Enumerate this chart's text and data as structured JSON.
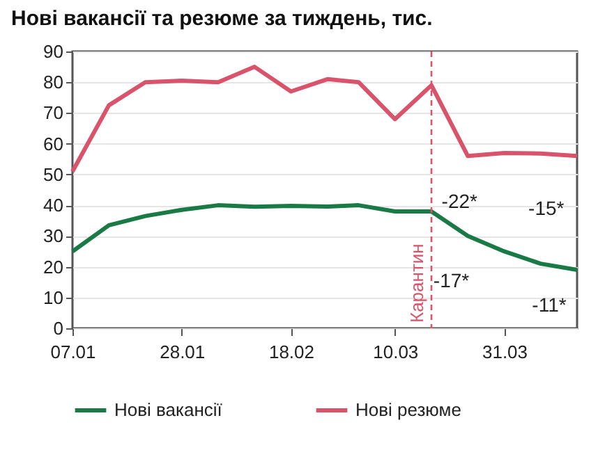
{
  "chart_data": {
    "type": "line",
    "title": "Нові вакансії та резюме за тиждень, тис.",
    "x": [
      "--01-07",
      "--01-14",
      "--01-21",
      "--01-28",
      "--02-04",
      "--02-11",
      "--02-18",
      "--02-25",
      "--03-03",
      "--03-10",
      "--03-17",
      "--03-24",
      "--03-31",
      "--04-07",
      "--04-14"
    ],
    "series": [
      {
        "name": "Нові вакансії",
        "color": "#1a7a46",
        "values": [
          25,
          33.5,
          36.5,
          38.5,
          40,
          39.5,
          39.8,
          39.6,
          40,
          38,
          38,
          30,
          25,
          21,
          19
        ]
      },
      {
        "name": "Нові резюме",
        "color": "#d9536b",
        "values": [
          51,
          72.5,
          80,
          80.5,
          80,
          85,
          77,
          81,
          80,
          68,
          79,
          56,
          57,
          56.8,
          56
        ]
      }
    ],
    "xlim": [
      "--01-07",
      "--04-14"
    ],
    "xticks": [
      {
        "value": "--01-07",
        "label": "07.01"
      },
      {
        "value": "--01-28",
        "label": "28.01"
      },
      {
        "value": "--02-18",
        "label": "18.02"
      },
      {
        "value": "--03-10",
        "label": "10.03"
      },
      {
        "value": "--03-31",
        "label": "31.03"
      }
    ],
    "ylim": [
      0,
      90
    ],
    "yticks": [
      0,
      10,
      20,
      30,
      40,
      50,
      60,
      70,
      80,
      90
    ],
    "grid": "y",
    "legend": "bottom",
    "ref_lines": [
      {
        "axis": "x",
        "value": "--03-17",
        "label": "Карантин",
        "color": "#d9536b",
        "line_style": "dashed"
      }
    ],
    "annotations": [
      {
        "text": "-22*",
        "x": "--03-24",
        "y": 30
      },
      {
        "text": "-17*",
        "x": "--03-31",
        "y": 25
      },
      {
        "text": "-15*",
        "x": "--04-07",
        "y": 21
      },
      {
        "text": "-11*",
        "x": "--04-14",
        "y": 19
      }
    ]
  }
}
